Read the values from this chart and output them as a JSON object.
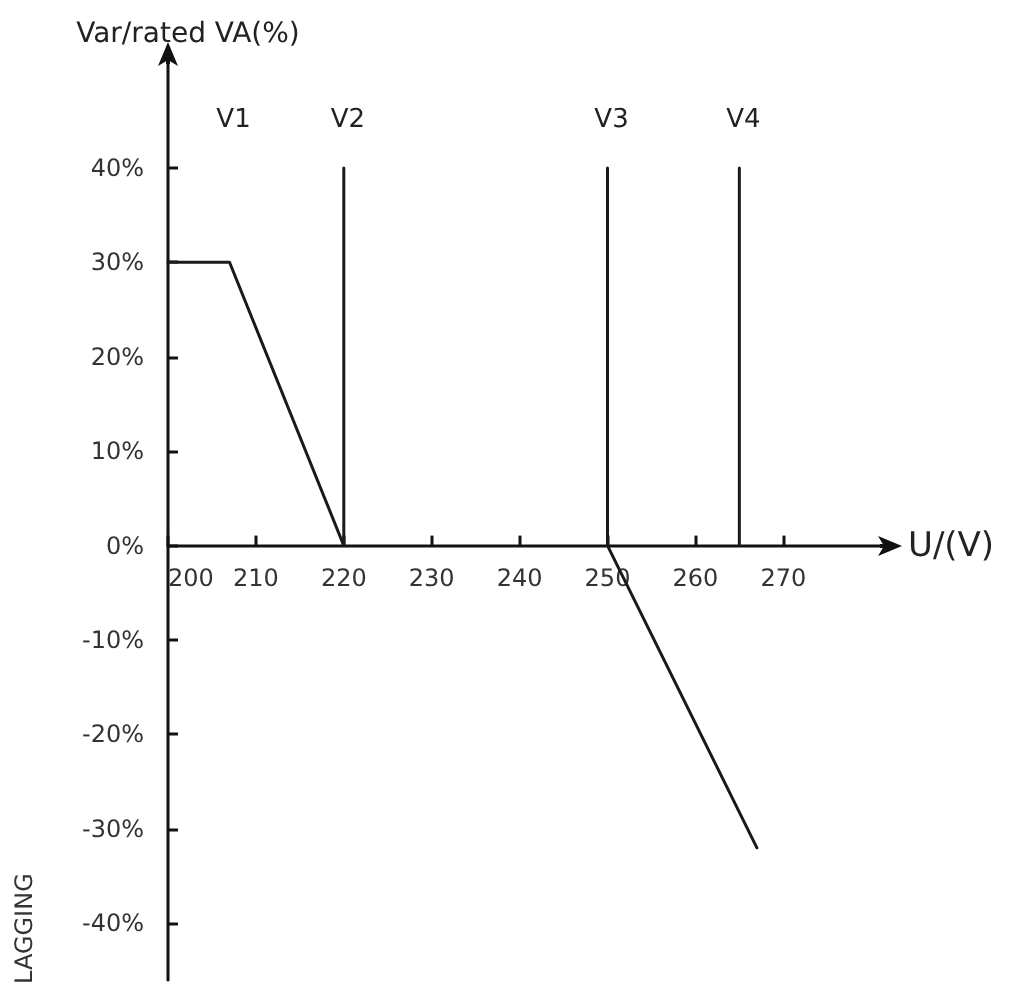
{
  "chart_data": {
    "type": "line",
    "xlabel": "U/(V)",
    "ylabel": "Var/rated VA(%)",
    "xlim": [
      200,
      281
    ],
    "xticks": [
      200,
      210,
      220,
      230,
      240,
      250,
      260,
      270
    ],
    "ylim": [
      -46,
      51
    ],
    "yticks": [
      {
        "value": -40,
        "label": "-40%"
      },
      {
        "value": -30,
        "label": "-30%"
      },
      {
        "value": -20,
        "label": "-20%"
      },
      {
        "value": -10,
        "label": "-10%"
      },
      {
        "value": 0,
        "label": "0%"
      },
      {
        "value": 10,
        "label": "10%"
      },
      {
        "value": 20,
        "label": "20%"
      },
      {
        "value": 30,
        "label": "30%"
      },
      {
        "value": 40,
        "label": "40%"
      }
    ],
    "series": [
      {
        "color": "#1a1a1a",
        "x": [
          200,
          207,
          220
        ],
        "values": [
          30,
          30,
          0
        ]
      },
      {
        "color": "#1a1a1a",
        "x": [
          250,
          267
        ],
        "values": [
          0,
          -32
        ]
      },
      {
        "color": "#1a1a1a",
        "x": [
          220,
          220
        ],
        "values": [
          0,
          40
        ]
      },
      {
        "color": "#1a1a1a",
        "x": [
          250,
          250
        ],
        "values": [
          0,
          40
        ]
      },
      {
        "color": "#1a1a1a",
        "x": [
          265,
          265
        ],
        "values": [
          0,
          40
        ]
      }
    ],
    "annotations": [
      "V1",
      "V2",
      "V3",
      "V4",
      "LAGGING"
    ],
    "marker": "none",
    "line_style": "solid",
    "grid": false
  }
}
